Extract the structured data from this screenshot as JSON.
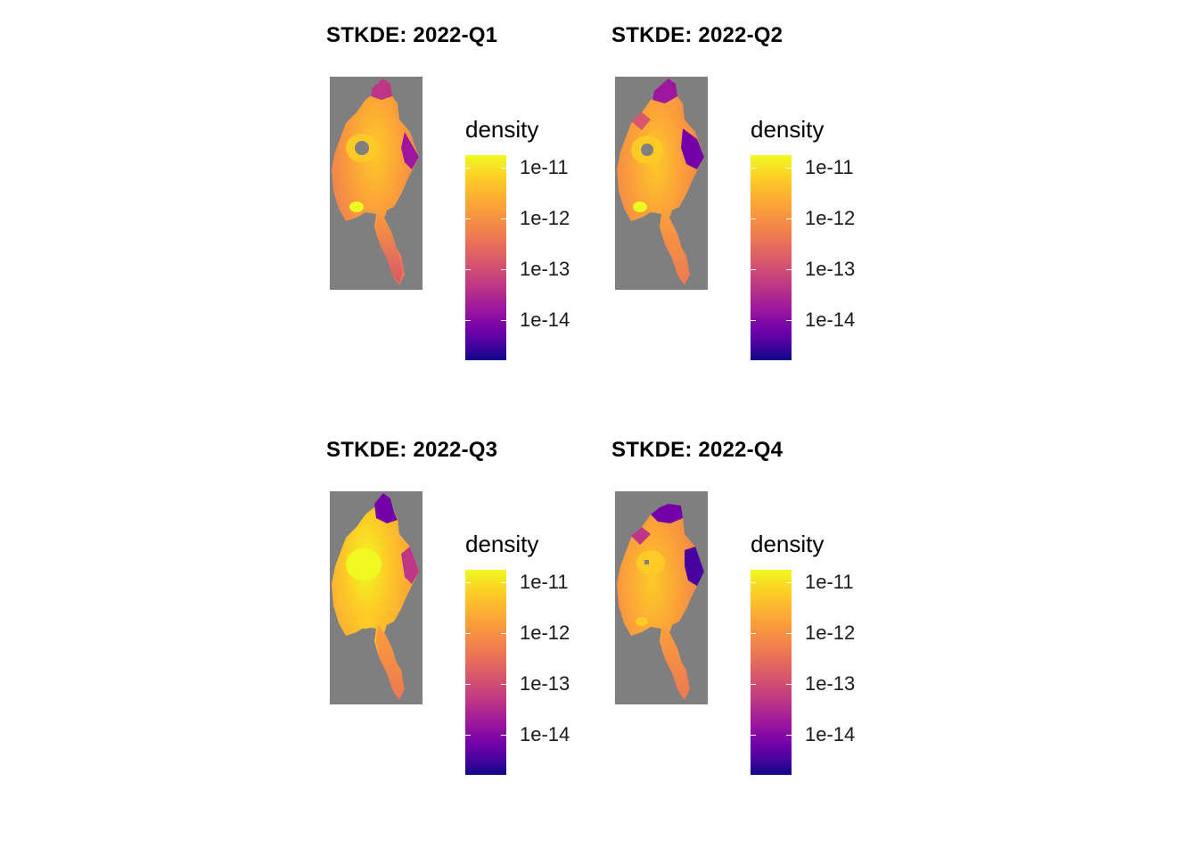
{
  "panels": [
    {
      "title": "STKDE: 2022-Q1",
      "legend_title": "density",
      "ticks": [
        "1e-11",
        "1e-12",
        "1e-13",
        "1e-14"
      ]
    },
    {
      "title": "STKDE: 2022-Q2",
      "legend_title": "density",
      "ticks": [
        "1e-11",
        "1e-12",
        "1e-13",
        "1e-14"
      ]
    },
    {
      "title": "STKDE: 2022-Q3",
      "legend_title": "density",
      "ticks": [
        "1e-11",
        "1e-12",
        "1e-13",
        "1e-14"
      ]
    },
    {
      "title": "STKDE: 2022-Q4",
      "legend_title": "density",
      "ticks": [
        "1e-11",
        "1e-12",
        "1e-13",
        "1e-14"
      ]
    }
  ],
  "colors": {
    "background_panel": "#7f7f7f",
    "palette": [
      "#0d0887",
      "#46039f",
      "#7201a8",
      "#9c179e",
      "#bd3786",
      "#d8576b",
      "#ed7953",
      "#fb9f3a",
      "#fdca26",
      "#f0f921"
    ]
  }
}
